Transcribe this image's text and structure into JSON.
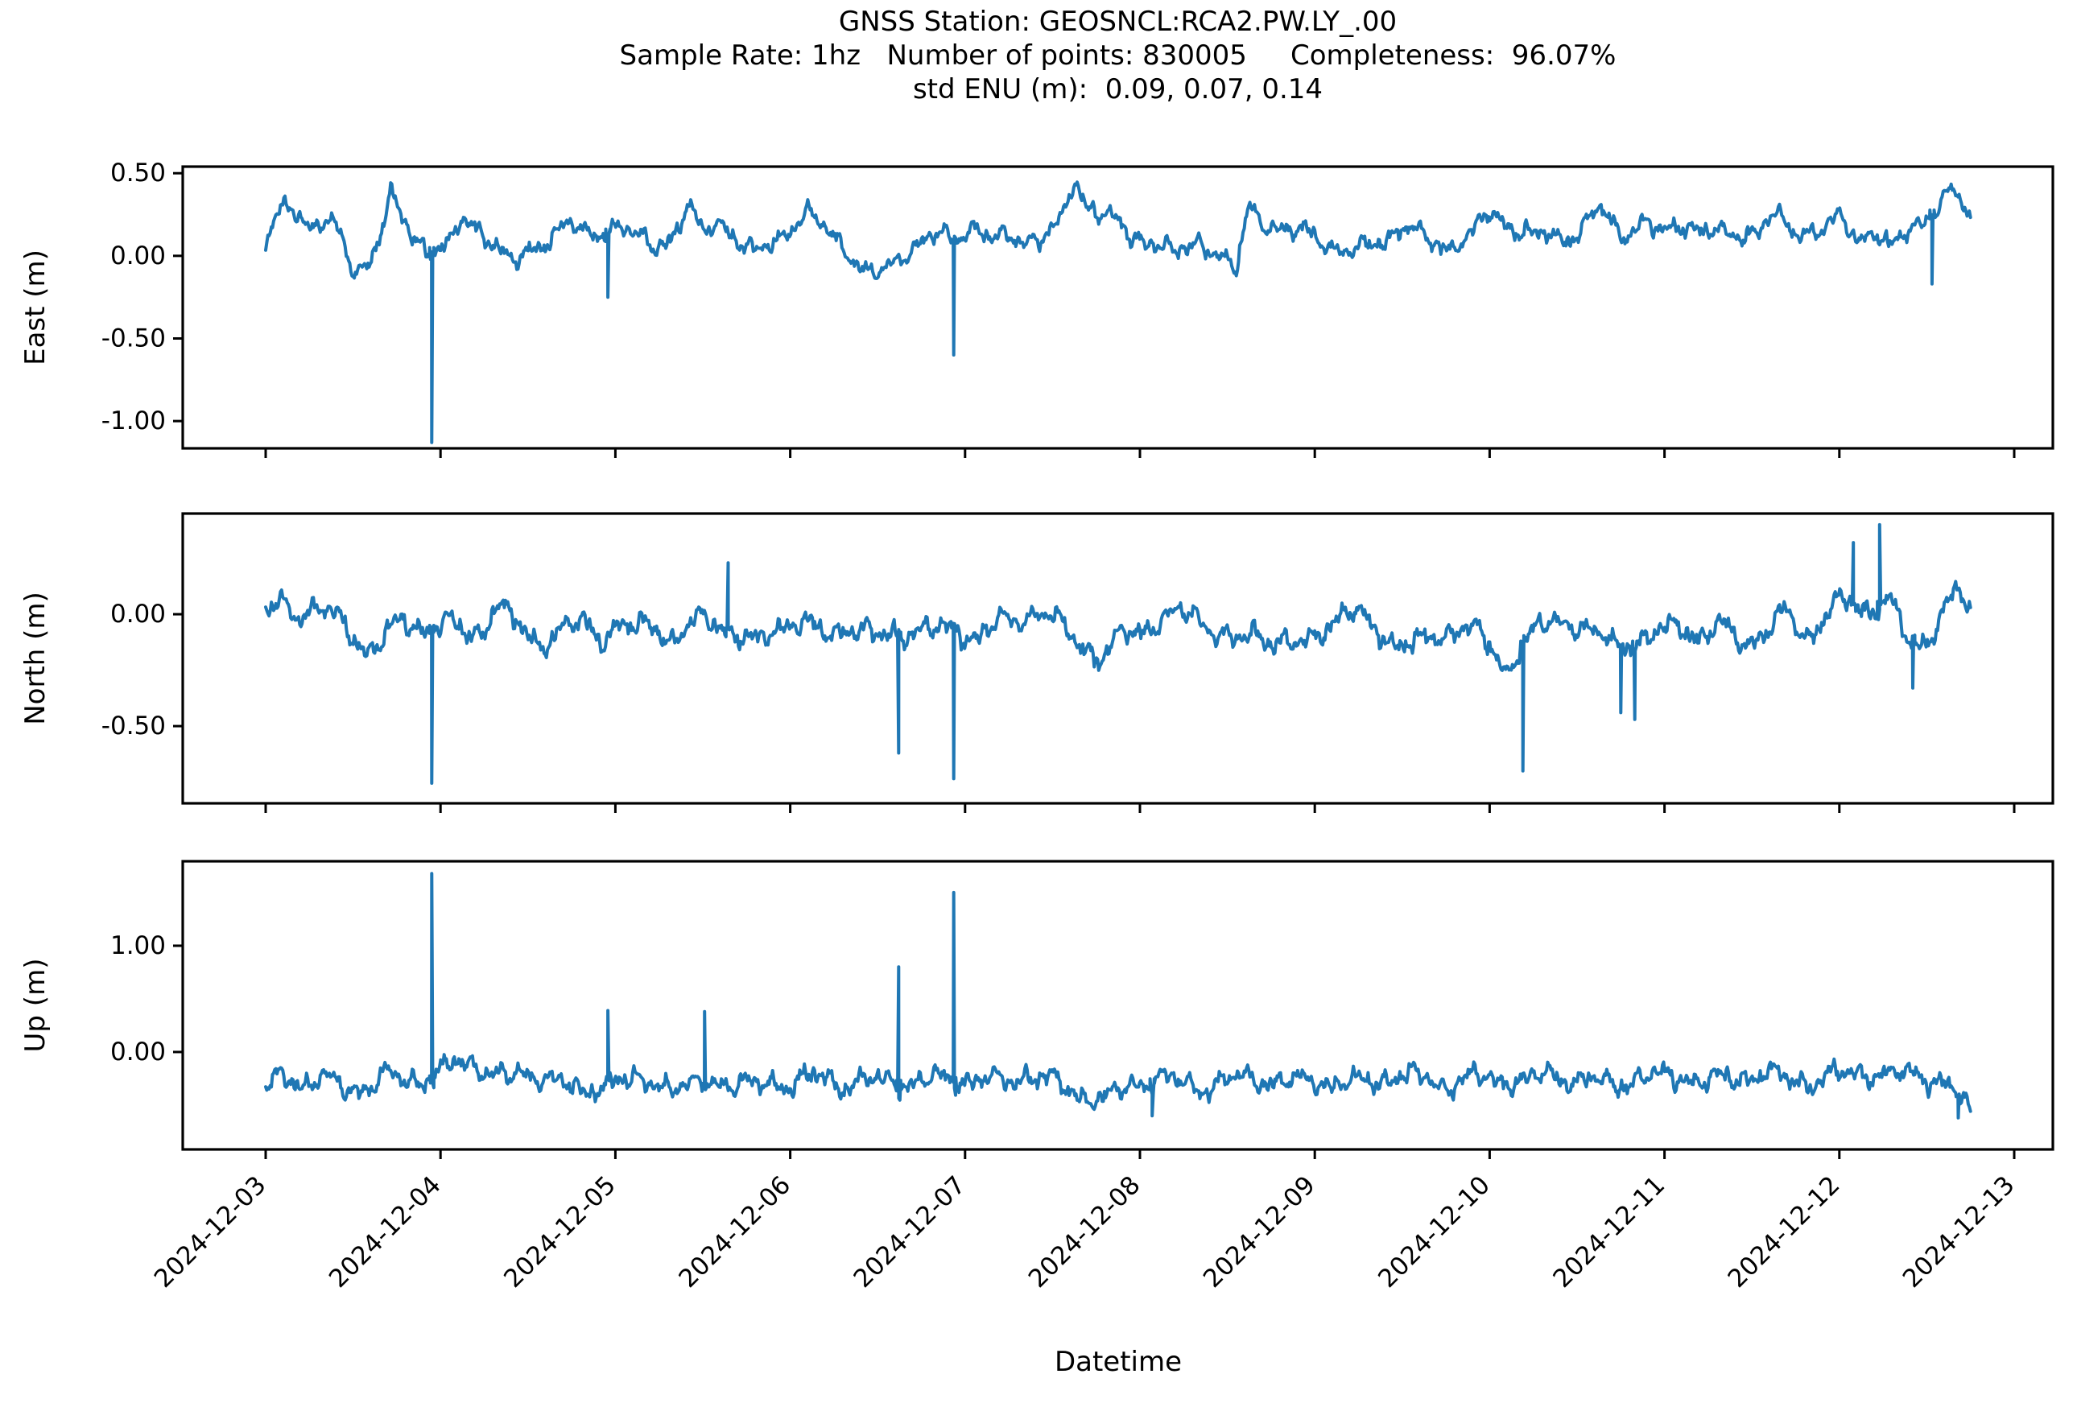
{
  "figure": {
    "background": "#ffffff",
    "axis_color": "#000000",
    "text_color": "#000000"
  },
  "stats": {
    "station": "GEOSNCL:RCA2.PW.LY_.00",
    "sample_rate": "1hz",
    "number_of_points": "830005",
    "completeness": "96.07%",
    "std_enu_m": "0.09, 0.07, 0.14"
  },
  "chart_data": {
    "type": "line",
    "title_lines": [
      "GNSS Station: GEOSNCL:RCA2.PW.LY_.00",
      "Sample Rate: 1hz   Number of points: 830005     Completeness:  96.07%",
      "std ENU (m):  0.09, 0.07, 0.14"
    ],
    "line_color": "#1f77b4",
    "grid": false,
    "legend": "none",
    "x_axis": {
      "label": "Datetime",
      "tick_labels": [
        "2024-12-03",
        "2024-12-04",
        "2024-12-05",
        "2024-12-06",
        "2024-12-07",
        "2024-12-08",
        "2024-12-09",
        "2024-12-10",
        "2024-12-11",
        "2024-12-12",
        "2024-12-13"
      ],
      "tick_days": [
        0,
        1,
        2,
        3,
        4,
        5,
        6,
        7,
        8,
        9,
        10
      ],
      "data_start_day": 0,
      "data_end_day": 9.75
    },
    "subplots": [
      {
        "ylabel": "East (m)",
        "ytick_values": [
          0.5,
          0.0,
          -0.5,
          -1.0
        ],
        "ytick_labels": [
          "0.50",
          "0.00",
          "-0.50",
          "-1.00"
        ],
        "ylim": [
          -1.165,
          0.54
        ],
        "noise_amp": 0.055,
        "anchors": [
          [
            0,
            0.07
          ],
          [
            0.08,
            0.25
          ],
          [
            0.15,
            0.3
          ],
          [
            0.25,
            0.19
          ],
          [
            0.35,
            0.21
          ],
          [
            0.42,
            0.12
          ],
          [
            0.5,
            -0.09
          ],
          [
            0.58,
            -0.05
          ],
          [
            0.65,
            0.12
          ],
          [
            0.72,
            0.36
          ],
          [
            0.78,
            0.22
          ],
          [
            0.85,
            0.1
          ],
          [
            0.95,
            0.05
          ],
          [
            1.05,
            0.06
          ],
          [
            1.12,
            0.2
          ],
          [
            1.2,
            0.18
          ],
          [
            1.3,
            0.1
          ],
          [
            1.42,
            -0.06
          ],
          [
            1.52,
            0.02
          ],
          [
            1.62,
            0.12
          ],
          [
            1.72,
            0.2
          ],
          [
            1.82,
            0.12
          ],
          [
            1.92,
            0.14
          ],
          [
            2.02,
            0.2
          ],
          [
            2.12,
            0.1
          ],
          [
            2.22,
            0.06
          ],
          [
            2.32,
            0.12
          ],
          [
            2.42,
            0.3
          ],
          [
            2.5,
            0.12
          ],
          [
            2.6,
            0.22
          ],
          [
            2.7,
            0.1
          ],
          [
            2.8,
            0
          ],
          [
            2.9,
            0.08
          ],
          [
            3,
            0.18
          ],
          [
            3.1,
            0.26
          ],
          [
            3.2,
            0.15
          ],
          [
            3.3,
            0.08
          ],
          [
            3.42,
            -0.1
          ],
          [
            3.52,
            -0.12
          ],
          [
            3.62,
            0
          ],
          [
            3.72,
            0.08
          ],
          [
            3.82,
            0.12
          ],
          [
            3.94,
            0.1
          ],
          [
            4.05,
            0.2
          ],
          [
            4.15,
            0.1
          ],
          [
            4.3,
            0.1
          ],
          [
            4.45,
            0.12
          ],
          [
            4.55,
            0.2
          ],
          [
            4.62,
            0.45
          ],
          [
            4.7,
            0.32
          ],
          [
            4.82,
            0.25
          ],
          [
            4.95,
            0.1
          ],
          [
            5.1,
            0.1
          ],
          [
            5.2,
            0
          ],
          [
            5.35,
            0.08
          ],
          [
            5.45,
            0.02
          ],
          [
            5.55,
            -0.1
          ],
          [
            5.62,
            0.28
          ],
          [
            5.72,
            0.2
          ],
          [
            5.85,
            0.15
          ],
          [
            6,
            0.12
          ],
          [
            6.12,
            0.05
          ],
          [
            6.25,
            0.02
          ],
          [
            6.4,
            0.1
          ],
          [
            6.5,
            0.2
          ],
          [
            6.62,
            0.1
          ],
          [
            6.75,
            0.05
          ],
          [
            6.88,
            0.12
          ],
          [
            7,
            0.25
          ],
          [
            7.12,
            0.2
          ],
          [
            7.25,
            0.12
          ],
          [
            7.4,
            0.1
          ],
          [
            7.5,
            0.15
          ],
          [
            7.62,
            0.28
          ],
          [
            7.75,
            0.12
          ],
          [
            7.88,
            0.22
          ],
          [
            8,
            0.12
          ],
          [
            8.12,
            0.2
          ],
          [
            8.25,
            0.15
          ],
          [
            8.38,
            0.1
          ],
          [
            8.5,
            0.15
          ],
          [
            8.62,
            0.25
          ],
          [
            8.75,
            0.12
          ],
          [
            8.88,
            0.18
          ],
          [
            9,
            0.22
          ],
          [
            9.1,
            0.08
          ],
          [
            9.2,
            0.18
          ],
          [
            9.3,
            0.05
          ],
          [
            9.42,
            0.15
          ],
          [
            9.55,
            0.3
          ],
          [
            9.65,
            0.42
          ],
          [
            9.7,
            0.3
          ],
          [
            9.75,
            0.2
          ]
        ],
        "spikes": [
          [
            0.95,
            -1.13
          ],
          [
            1.957,
            -0.25
          ],
          [
            3.935,
            -0.6
          ],
          [
            9.53,
            -0.17
          ]
        ]
      },
      {
        "ylabel": "North (m)",
        "ytick_values": [
          0.0,
          -0.5
        ],
        "ytick_labels": [
          "0.00",
          "-0.50"
        ],
        "ylim": [
          -0.845,
          0.45
        ],
        "noise_amp": 0.05,
        "anchors": [
          [
            0,
            0
          ],
          [
            0.1,
            0.04
          ],
          [
            0.2,
            0
          ],
          [
            0.3,
            0.04
          ],
          [
            0.4,
            -0.02
          ],
          [
            0.5,
            -0.1
          ],
          [
            0.58,
            -0.16
          ],
          [
            0.68,
            -0.1
          ],
          [
            0.78,
            -0.04
          ],
          [
            0.88,
            -0.06
          ],
          [
            0.95,
            -0.05
          ],
          [
            1.05,
            -0.04
          ],
          [
            1.15,
            -0.1
          ],
          [
            1.25,
            -0.06
          ],
          [
            1.32,
            0.06
          ],
          [
            1.42,
            -0.04
          ],
          [
            1.52,
            -0.12
          ],
          [
            1.62,
            -0.1
          ],
          [
            1.72,
            -0.06
          ],
          [
            1.82,
            -0.04
          ],
          [
            1.92,
            -0.1
          ],
          [
            2.02,
            -0.04
          ],
          [
            2.12,
            -0.08
          ],
          [
            2.22,
            -0.04
          ],
          [
            2.32,
            -0.12
          ],
          [
            2.42,
            -0.06
          ],
          [
            2.52,
            -0.02
          ],
          [
            2.62,
            -0.05
          ],
          [
            2.72,
            -0.1
          ],
          [
            2.82,
            -0.14
          ],
          [
            2.92,
            -0.06
          ],
          [
            3.02,
            -0.02
          ],
          [
            3.12,
            -0.06
          ],
          [
            3.22,
            -0.1
          ],
          [
            3.32,
            -0.04
          ],
          [
            3.42,
            -0.08
          ],
          [
            3.52,
            -0.12
          ],
          [
            3.62,
            -0.08
          ],
          [
            3.72,
            -0.06
          ],
          [
            3.82,
            -0.08
          ],
          [
            3.94,
            -0.06
          ],
          [
            4.05,
            -0.1
          ],
          [
            4.18,
            -0.06
          ],
          [
            4.3,
            -0.02
          ],
          [
            4.42,
            0.02
          ],
          [
            4.52,
            -0.04
          ],
          [
            4.65,
            -0.12
          ],
          [
            4.78,
            -0.2
          ],
          [
            4.9,
            -0.1
          ],
          [
            5.02,
            -0.06
          ],
          [
            5.15,
            -0.02
          ],
          [
            5.3,
            0
          ],
          [
            5.42,
            -0.06
          ],
          [
            5.55,
            -0.14
          ],
          [
            5.68,
            -0.08
          ],
          [
            5.8,
            -0.12
          ],
          [
            5.92,
            -0.16
          ],
          [
            6.05,
            -0.06
          ],
          [
            6.18,
            0.02
          ],
          [
            6.3,
            -0.04
          ],
          [
            6.45,
            -0.12
          ],
          [
            6.58,
            -0.14
          ],
          [
            6.7,
            -0.1
          ],
          [
            6.85,
            -0.04
          ],
          [
            7,
            -0.15
          ],
          [
            7.1,
            -0.25
          ],
          [
            7.19,
            -0.12
          ],
          [
            7.3,
            -0.06
          ],
          [
            7.45,
            -0.02
          ],
          [
            7.58,
            -0.08
          ],
          [
            7.7,
            -0.14
          ],
          [
            7.83,
            -0.12
          ],
          [
            7.95,
            -0.1
          ],
          [
            8.08,
            -0.04
          ],
          [
            8.2,
            -0.1
          ],
          [
            8.32,
            -0.06
          ],
          [
            8.45,
            -0.12
          ],
          [
            8.58,
            -0.08
          ],
          [
            8.7,
            0
          ],
          [
            8.82,
            -0.1
          ],
          [
            8.95,
            0.02
          ],
          [
            9.05,
            0.05
          ],
          [
            9.15,
            0.02
          ],
          [
            9.28,
            0.08
          ],
          [
            9.4,
            -0.14
          ],
          [
            9.5,
            -0.12
          ],
          [
            9.6,
            0.04
          ],
          [
            9.68,
            0.1
          ],
          [
            9.75,
            0
          ]
        ],
        "spikes": [
          [
            0.95,
            -0.755
          ],
          [
            2.645,
            0.23
          ],
          [
            3.62,
            -0.62
          ],
          [
            3.935,
            -0.735
          ],
          [
            7.19,
            -0.7
          ],
          [
            7.75,
            -0.44
          ],
          [
            7.83,
            -0.47
          ],
          [
            9.08,
            0.32
          ],
          [
            9.23,
            0.4
          ],
          [
            9.42,
            -0.33
          ]
        ]
      },
      {
        "ylabel": "Up (m)",
        "ytick_values": [
          1.0,
          0.0
        ],
        "ytick_labels": [
          "1.00",
          "0.00"
        ],
        "ylim": [
          -0.917,
          1.795
        ],
        "noise_amp": 0.1,
        "anchors": [
          [
            0,
            -0.38
          ],
          [
            0.1,
            -0.2
          ],
          [
            0.2,
            -0.3
          ],
          [
            0.3,
            -0.25
          ],
          [
            0.4,
            -0.32
          ],
          [
            0.5,
            -0.35
          ],
          [
            0.6,
            -0.3
          ],
          [
            0.7,
            -0.22
          ],
          [
            0.8,
            -0.28
          ],
          [
            0.9,
            -0.25
          ],
          [
            1,
            -0.2
          ],
          [
            1.1,
            -0.12
          ],
          [
            1.2,
            -0.1
          ],
          [
            1.3,
            -0.2
          ],
          [
            1.4,
            -0.25
          ],
          [
            1.5,
            -0.22
          ],
          [
            1.6,
            -0.2
          ],
          [
            1.7,
            -0.3
          ],
          [
            1.8,
            -0.42
          ],
          [
            1.9,
            -0.3
          ],
          [
            2,
            -0.25
          ],
          [
            2.1,
            -0.32
          ],
          [
            2.2,
            -0.26
          ],
          [
            2.3,
            -0.3
          ],
          [
            2.4,
            -0.36
          ],
          [
            2.5,
            -0.3
          ],
          [
            2.6,
            -0.26
          ],
          [
            2.7,
            -0.3
          ],
          [
            2.8,
            -0.34
          ],
          [
            2.9,
            -0.28
          ],
          [
            3,
            -0.3
          ],
          [
            3.1,
            -0.26
          ],
          [
            3.2,
            -0.24
          ],
          [
            3.3,
            -0.3
          ],
          [
            3.4,
            -0.28
          ],
          [
            3.5,
            -0.3
          ],
          [
            3.6,
            -0.26
          ],
          [
            3.7,
            -0.3
          ],
          [
            3.8,
            -0.28
          ],
          [
            3.94,
            -0.24
          ],
          [
            4.05,
            -0.26
          ],
          [
            4.2,
            -0.3
          ],
          [
            4.35,
            -0.2
          ],
          [
            4.5,
            -0.28
          ],
          [
            4.65,
            -0.4
          ],
          [
            4.8,
            -0.46
          ],
          [
            4.95,
            -0.3
          ],
          [
            5.1,
            -0.24
          ],
          [
            5.25,
            -0.3
          ],
          [
            5.4,
            -0.32
          ],
          [
            5.55,
            -0.26
          ],
          [
            5.7,
            -0.24
          ],
          [
            5.85,
            -0.3
          ],
          [
            6,
            -0.26
          ],
          [
            6.15,
            -0.3
          ],
          [
            6.3,
            -0.28
          ],
          [
            6.45,
            -0.22
          ],
          [
            6.6,
            -0.26
          ],
          [
            6.75,
            -0.3
          ],
          [
            6.9,
            -0.26
          ],
          [
            7.05,
            -0.24
          ],
          [
            7.2,
            -0.28
          ],
          [
            7.35,
            -0.22
          ],
          [
            7.5,
            -0.26
          ],
          [
            7.65,
            -0.3
          ],
          [
            7.8,
            -0.26
          ],
          [
            7.95,
            -0.24
          ],
          [
            8.1,
            -0.22
          ],
          [
            8.25,
            -0.28
          ],
          [
            8.4,
            -0.24
          ],
          [
            8.55,
            -0.2
          ],
          [
            8.7,
            -0.26
          ],
          [
            8.85,
            -0.28
          ],
          [
            9,
            -0.22
          ],
          [
            9.15,
            -0.18
          ],
          [
            9.3,
            -0.24
          ],
          [
            9.45,
            -0.2
          ],
          [
            9.6,
            -0.3
          ],
          [
            9.7,
            -0.45
          ],
          [
            9.75,
            -0.58
          ]
        ],
        "spikes": [
          [
            0.95,
            1.68
          ],
          [
            1.957,
            0.39
          ],
          [
            2.51,
            0.38
          ],
          [
            3.62,
            0.8
          ],
          [
            3.935,
            1.5
          ],
          [
            5.07,
            -0.6
          ],
          [
            9.68,
            -0.62
          ]
        ]
      }
    ]
  }
}
